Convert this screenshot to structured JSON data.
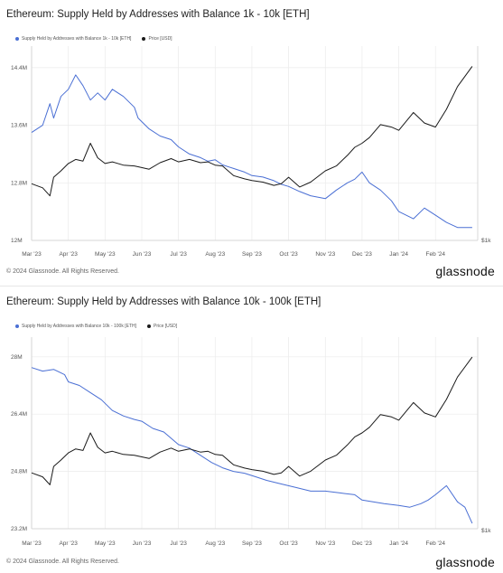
{
  "colors": {
    "supply": "#4a6fd4",
    "price": "#1a1a1a",
    "grid": "#ebebeb",
    "axis": "#cfcfcf"
  },
  "footer": {
    "copyright": "© 2024 Glassnode. All Rights Reserved.",
    "brand": "glassnode"
  },
  "chart_data": [
    {
      "type": "line",
      "title": "Ethereum: Supply Held by Addresses with Balance 1k - 10k [ETH]",
      "legend": [
        "Supply Held by Addresses with Balance 1k - 10k [ETH]",
        "Price [USD]"
      ],
      "yticks": [
        12000000,
        12800000,
        13600000,
        14400000
      ],
      "ytick_labels": [
        "12M",
        "12.8M",
        "13.6M",
        "14.4M"
      ],
      "ylim": [
        12000000,
        14700000
      ],
      "right_tick": "$1k",
      "xticks": [
        "Mar '23",
        "Apr '23",
        "May '23",
        "Jun '23",
        "Jul '23",
        "Aug '23",
        "Sep '23",
        "Oct '23",
        "Nov '23",
        "Dec '23",
        "Jan '24",
        "Feb '24"
      ],
      "xlim": [
        0,
        12.15
      ],
      "series": [
        {
          "name": "Supply Held by Addresses with Balance 1k - 10k [ETH]",
          "axis": "left",
          "x": [
            0,
            0.3,
            0.5,
            0.6,
            0.8,
            1.0,
            1.2,
            1.4,
            1.6,
            1.8,
            2.0,
            2.2,
            2.5,
            2.8,
            2.9,
            3.2,
            3.5,
            3.8,
            4.0,
            4.3,
            4.6,
            4.8,
            5.0,
            5.2,
            5.5,
            5.8,
            6.0,
            6.3,
            6.6,
            6.8,
            7.0,
            7.3,
            7.6,
            8.0,
            8.3,
            8.6,
            8.8,
            9.0,
            9.2,
            9.5,
            9.8,
            10.0,
            10.4,
            10.7,
            11.0,
            11.3,
            11.6,
            12.0
          ],
          "values": [
            13500000,
            13600000,
            13900000,
            13700000,
            14000000,
            14100000,
            14300000,
            14150000,
            13950000,
            14050000,
            13950000,
            14100000,
            14000000,
            13850000,
            13700000,
            13550000,
            13450000,
            13400000,
            13300000,
            13200000,
            13150000,
            13100000,
            13120000,
            13050000,
            13000000,
            12950000,
            12900000,
            12880000,
            12830000,
            12780000,
            12750000,
            12680000,
            12620000,
            12580000,
            12700000,
            12800000,
            12850000,
            12950000,
            12800000,
            12700000,
            12550000,
            12400000,
            12300000,
            12450000,
            12350000,
            12250000,
            12180000,
            12180000
          ]
        },
        {
          "name": "Price [USD]",
          "axis": "right",
          "x": [
            0,
            0.3,
            0.5,
            0.6,
            0.8,
            1.0,
            1.2,
            1.4,
            1.6,
            1.8,
            2.0,
            2.2,
            2.5,
            2.8,
            2.9,
            3.2,
            3.5,
            3.8,
            4.0,
            4.3,
            4.6,
            4.8,
            5.0,
            5.2,
            5.5,
            5.8,
            6.0,
            6.3,
            6.6,
            6.8,
            7.0,
            7.3,
            7.6,
            8.0,
            8.3,
            8.6,
            8.8,
            9.0,
            9.2,
            9.5,
            9.8,
            10.0,
            10.4,
            10.7,
            11.0,
            11.3,
            11.6,
            12.0
          ],
          "values": [
            1600,
            1550,
            1450,
            1680,
            1760,
            1850,
            1900,
            1880,
            2100,
            1920,
            1850,
            1870,
            1830,
            1820,
            1810,
            1780,
            1860,
            1910,
            1870,
            1900,
            1860,
            1870,
            1830,
            1820,
            1700,
            1660,
            1640,
            1620,
            1580,
            1600,
            1680,
            1560,
            1620,
            1760,
            1820,
            1950,
            2050,
            2100,
            2170,
            2330,
            2300,
            2260,
            2480,
            2350,
            2300,
            2520,
            2800,
            3050
          ]
        }
      ]
    },
    {
      "type": "line",
      "title": "Ethereum: Supply Held by Addresses with Balance 10k - 100k [ETH]",
      "legend": [
        "Supply Held by Addresses with Balance 10k - 100k [ETH]",
        "Price [USD]"
      ],
      "yticks": [
        23200000,
        24800000,
        26400000,
        28000000
      ],
      "ytick_labels": [
        "23.2M",
        "24.8M",
        "26.4M",
        "28M"
      ],
      "ylim": [
        23200000,
        28550000
      ],
      "right_tick": "$1k",
      "xticks": [
        "Mar '23",
        "Apr '23",
        "May '23",
        "Jun '23",
        "Jul '23",
        "Aug '23",
        "Sep '23",
        "Oct '23",
        "Nov '23",
        "Dec '23",
        "Jan '24",
        "Feb '24"
      ],
      "xlim": [
        0,
        12.15
      ],
      "series": [
        {
          "name": "Supply Held by Addresses with Balance 10k - 100k [ETH]",
          "axis": "left",
          "x": [
            0,
            0.3,
            0.6,
            0.9,
            1.0,
            1.3,
            1.6,
            1.9,
            2.2,
            2.5,
            2.8,
            3.0,
            3.3,
            3.6,
            4.0,
            4.3,
            4.6,
            4.9,
            5.2,
            5.5,
            5.8,
            6.1,
            6.4,
            6.8,
            7.2,
            7.6,
            8.0,
            8.4,
            8.8,
            9.0,
            9.3,
            9.6,
            10.0,
            10.3,
            10.6,
            10.8,
            11.0,
            11.3,
            11.6,
            11.8,
            12.0
          ],
          "values": [
            27700000,
            27600000,
            27650000,
            27500000,
            27300000,
            27200000,
            27000000,
            26800000,
            26500000,
            26350000,
            26250000,
            26200000,
            26000000,
            25900000,
            25550000,
            25450000,
            25250000,
            25050000,
            24900000,
            24800000,
            24750000,
            24650000,
            24550000,
            24450000,
            24350000,
            24250000,
            24250000,
            24200000,
            24150000,
            24000000,
            23950000,
            23900000,
            23850000,
            23800000,
            23900000,
            24000000,
            24150000,
            24400000,
            23950000,
            23800000,
            23350000
          ]
        },
        {
          "name": "Price [USD]",
          "axis": "right",
          "x": [
            0,
            0.3,
            0.5,
            0.6,
            0.8,
            1.0,
            1.2,
            1.4,
            1.6,
            1.8,
            2.0,
            2.2,
            2.5,
            2.8,
            2.9,
            3.2,
            3.5,
            3.8,
            4.0,
            4.3,
            4.6,
            4.8,
            5.0,
            5.2,
            5.5,
            5.8,
            6.0,
            6.3,
            6.6,
            6.8,
            7.0,
            7.3,
            7.6,
            8.0,
            8.3,
            8.6,
            8.8,
            9.0,
            9.2,
            9.5,
            9.8,
            10.0,
            10.4,
            10.7,
            11.0,
            11.3,
            11.6,
            12.0
          ],
          "values": [
            1600,
            1550,
            1450,
            1680,
            1760,
            1850,
            1900,
            1880,
            2100,
            1920,
            1850,
            1870,
            1830,
            1820,
            1810,
            1780,
            1860,
            1910,
            1870,
            1900,
            1860,
            1870,
            1830,
            1820,
            1700,
            1660,
            1640,
            1620,
            1580,
            1600,
            1680,
            1560,
            1620,
            1760,
            1820,
            1950,
            2050,
            2100,
            2170,
            2330,
            2300,
            2260,
            2480,
            2350,
            2300,
            2520,
            2800,
            3050
          ]
        }
      ]
    }
  ]
}
